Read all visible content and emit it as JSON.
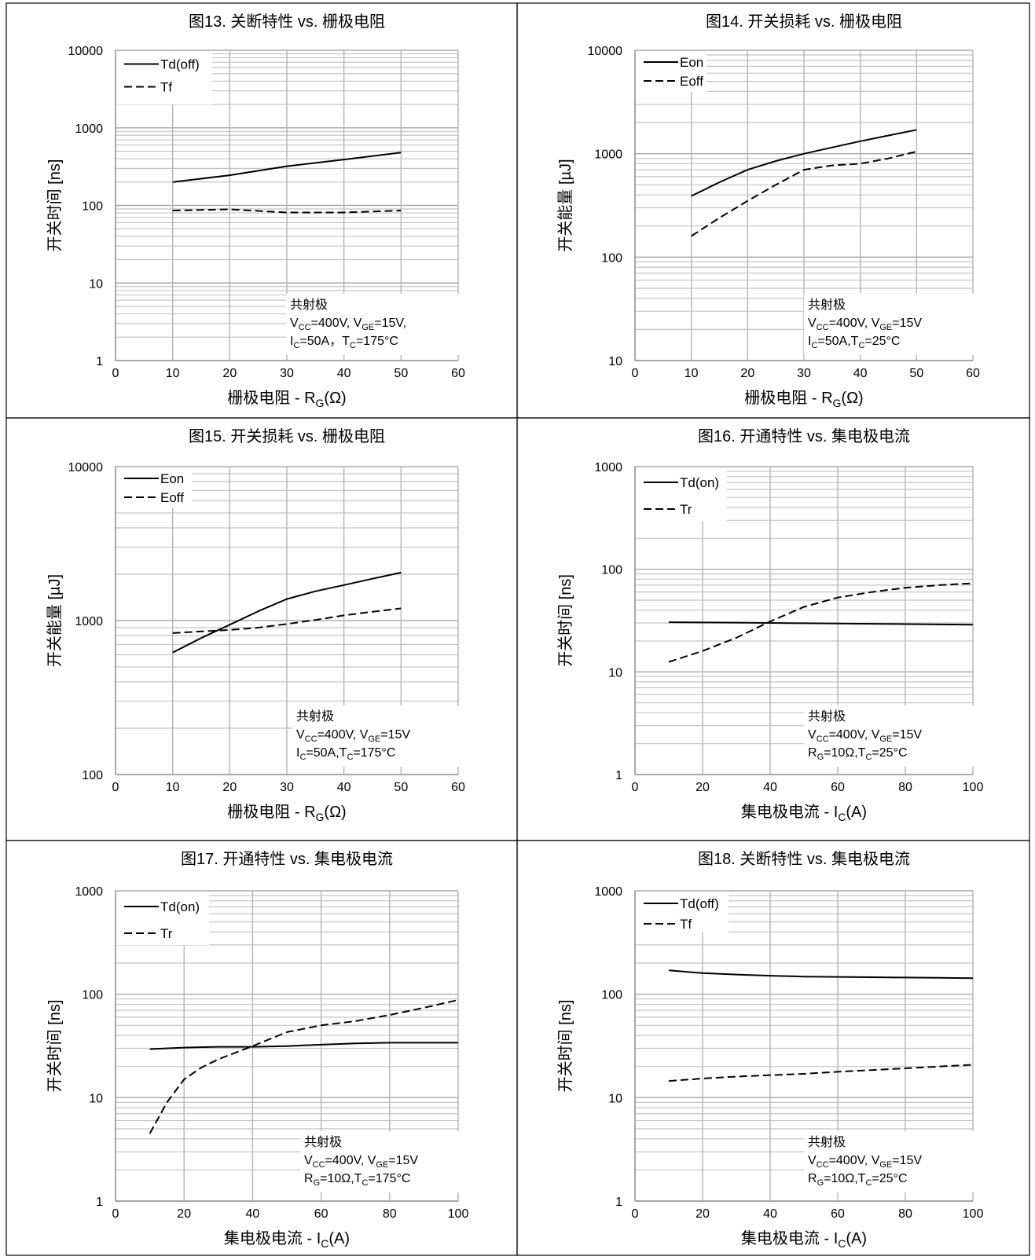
{
  "chart_data": [
    {
      "type": "line",
      "title": "图13. 关断特性 vs. 栅极电阻",
      "xlabel": "栅极电阻 - R",
      "xlabel_sub": "G",
      "xlabel_tail": "(Ω)",
      "ylabel": "开关时间 [ns]",
      "log_y": true,
      "xlim": [
        0,
        60
      ],
      "ylim": [
        1,
        10000
      ],
      "x_ticks": [
        "0",
        "10",
        "20",
        "30",
        "40",
        "50",
        "60"
      ],
      "y_ticks": [
        "1",
        "10",
        "100",
        "1000",
        "10000"
      ],
      "grid": true,
      "legend_position": "top-left",
      "series": [
        {
          "name": "Td(off)",
          "dash": "solid",
          "x": [
            10,
            20,
            30,
            40,
            50
          ],
          "y": [
            200,
            245,
            320,
            390,
            480
          ]
        },
        {
          "name": "Tf",
          "dash": "dashed",
          "x": [
            10,
            20,
            30,
            40,
            50
          ],
          "y": [
            86,
            89,
            81,
            81,
            86
          ]
        }
      ],
      "annotation": [
        [
          {
            "t": "共射极"
          }
        ],
        [
          {
            "t": "V"
          },
          {
            "t": "CC",
            "sub": true
          },
          {
            "t": "=400V, V"
          },
          {
            "t": "GE",
            "sub": true
          },
          {
            "t": "=15V,"
          }
        ],
        [
          {
            "t": "I"
          },
          {
            "t": "C",
            "sub": true
          },
          {
            "t": "=50A，T"
          },
          {
            "t": "C",
            "sub": true
          },
          {
            "t": "=175°C"
          }
        ]
      ]
    },
    {
      "type": "line",
      "title": "图14. 开关损耗 vs. 栅极电阻",
      "xlabel": "栅极电阻 - R",
      "xlabel_sub": "G",
      "xlabel_tail": "(Ω)",
      "ylabel": "开关能量 [µJ]",
      "log_y": true,
      "xlim": [
        0,
        60
      ],
      "ylim": [
        10,
        10000
      ],
      "x_ticks": [
        "0",
        "10",
        "20",
        "30",
        "40",
        "50",
        "60"
      ],
      "y_ticks": [
        "10",
        "100",
        "1000",
        "10000"
      ],
      "grid": true,
      "legend_position": "top-left",
      "series": [
        {
          "name": "Eon",
          "dash": "solid",
          "x": [
            10,
            15,
            20,
            25,
            30,
            35,
            40,
            45,
            50
          ],
          "y": [
            390,
            530,
            700,
            850,
            1000,
            1150,
            1320,
            1500,
            1700
          ]
        },
        {
          "name": "Eoff",
          "dash": "dashed",
          "x": [
            10,
            15,
            20,
            25,
            30,
            35,
            40,
            45,
            50
          ],
          "y": [
            160,
            240,
            350,
            500,
            700,
            770,
            800,
            900,
            1050
          ]
        }
      ],
      "annotation": [
        [
          {
            "t": "共射极"
          }
        ],
        [
          {
            "t": "V"
          },
          {
            "t": "CC",
            "sub": true
          },
          {
            "t": "=400V, V"
          },
          {
            "t": "GE",
            "sub": true
          },
          {
            "t": "=15V"
          }
        ],
        [
          {
            "t": "I"
          },
          {
            "t": "C",
            "sub": true
          },
          {
            "t": "=50A,T"
          },
          {
            "t": "C",
            "sub": true
          },
          {
            "t": "=25°C"
          }
        ]
      ]
    },
    {
      "type": "line",
      "title": "图15. 开关损耗 vs. 栅极电阻",
      "xlabel": "栅极电阻 - R",
      "xlabel_sub": "G",
      "xlabel_tail": "(Ω)",
      "ylabel": "开关能量 [µJ]",
      "log_y": true,
      "xlim": [
        0,
        60
      ],
      "ylim": [
        100,
        10000
      ],
      "x_ticks": [
        "0",
        "10",
        "20",
        "30",
        "40",
        "50",
        "60"
      ],
      "y_ticks": [
        "100",
        "1000",
        "10000"
      ],
      "grid": true,
      "legend_position": "top-left",
      "series": [
        {
          "name": "Eon",
          "dash": "solid",
          "x": [
            10,
            15,
            20,
            25,
            30,
            35,
            40,
            45,
            50
          ],
          "y": [
            620,
            770,
            940,
            1150,
            1380,
            1550,
            1700,
            1870,
            2050
          ]
        },
        {
          "name": "Eoff",
          "dash": "dashed",
          "x": [
            10,
            15,
            20,
            25,
            30,
            35,
            40,
            45,
            50
          ],
          "y": [
            830,
            850,
            870,
            900,
            950,
            1010,
            1080,
            1140,
            1200
          ]
        }
      ],
      "annotation": [
        [
          {
            "t": "共射极"
          }
        ],
        [
          {
            "t": "V"
          },
          {
            "t": "CC",
            "sub": true
          },
          {
            "t": "=400V, V"
          },
          {
            "t": "GE",
            "sub": true
          },
          {
            "t": "=15V"
          }
        ],
        [
          {
            "t": "I"
          },
          {
            "t": "C",
            "sub": true
          },
          {
            "t": "=50A,T"
          },
          {
            "t": "C",
            "sub": true
          },
          {
            "t": "=175°C"
          }
        ]
      ]
    },
    {
      "type": "line",
      "title": "图16. 开通特性 vs. 集电极电流",
      "xlabel": "集电极电流 - I",
      "xlabel_sub": "C",
      "xlabel_tail": "(A)",
      "ylabel": "开关时间 [ns]",
      "log_y": true,
      "xlim": [
        0,
        100
      ],
      "ylim": [
        1,
        1000
      ],
      "x_ticks": [
        "0",
        "20",
        "40",
        "60",
        "80",
        "100"
      ],
      "y_ticks": [
        "1",
        "10",
        "100",
        "1000"
      ],
      "grid": true,
      "legend_position": "top-left",
      "series": [
        {
          "name": "Td(on)",
          "dash": "solid",
          "x": [
            10,
            20,
            30,
            40,
            50,
            60,
            70,
            80,
            90,
            100
          ],
          "y": [
            30.5,
            30.3,
            30.2,
            30.0,
            29.8,
            29.6,
            29.4,
            29.2,
            29.0,
            28.8
          ]
        },
        {
          "name": "Tr",
          "dash": "dashed",
          "x": [
            10,
            20,
            30,
            40,
            50,
            60,
            70,
            80,
            90,
            100
          ],
          "y": [
            12.5,
            16,
            21.5,
            31,
            43,
            53,
            60,
            66,
            70,
            73
          ]
        }
      ],
      "annotation": [
        [
          {
            "t": "共射极"
          }
        ],
        [
          {
            "t": "V"
          },
          {
            "t": "CC",
            "sub": true
          },
          {
            "t": "=400V, V"
          },
          {
            "t": "GE",
            "sub": true
          },
          {
            "t": "=15V"
          }
        ],
        [
          {
            "t": "R"
          },
          {
            "t": "G",
            "sub": true
          },
          {
            "t": "=10Ω,T"
          },
          {
            "t": "C",
            "sub": true
          },
          {
            "t": "=25°C"
          }
        ]
      ]
    },
    {
      "type": "line",
      "title": "图17. 开通特性 vs. 集电极电流",
      "xlabel": "集电极电流 - I",
      "xlabel_sub": "C",
      "xlabel_tail": "(A)",
      "ylabel": "开关时间 [ns]",
      "log_y": true,
      "xlim": [
        0,
        100
      ],
      "ylim": [
        1,
        1000
      ],
      "x_ticks": [
        "0",
        "20",
        "40",
        "60",
        "80",
        "100"
      ],
      "y_ticks": [
        "1",
        "10",
        "100",
        "1000"
      ],
      "grid": true,
      "legend_position": "top-left",
      "series": [
        {
          "name": "Td(on)",
          "dash": "solid",
          "x": [
            10,
            20,
            30,
            40,
            50,
            60,
            70,
            80,
            90,
            100
          ],
          "y": [
            29.5,
            30.5,
            31,
            31,
            31.5,
            32.5,
            33.5,
            34,
            34,
            34
          ]
        },
        {
          "name": "Tr",
          "dash": "dashed",
          "x": [
            10,
            15,
            20,
            25,
            30,
            40,
            50,
            60,
            70,
            80,
            90,
            100
          ],
          "y": [
            4.5,
            9,
            15,
            19.5,
            23.5,
            31.5,
            43,
            50,
            55,
            63,
            74,
            88
          ]
        }
      ],
      "annotation": [
        [
          {
            "t": "共射极"
          }
        ],
        [
          {
            "t": "V"
          },
          {
            "t": "CC",
            "sub": true
          },
          {
            "t": "=400V, V"
          },
          {
            "t": "GE",
            "sub": true
          },
          {
            "t": "=15V"
          }
        ],
        [
          {
            "t": "R"
          },
          {
            "t": "G",
            "sub": true
          },
          {
            "t": "=10Ω,T"
          },
          {
            "t": "C",
            "sub": true
          },
          {
            "t": "=175°C"
          }
        ]
      ]
    },
    {
      "type": "line",
      "title": "图18. 关断特性 vs. 集电极电流",
      "xlabel": "集电极电流 - I",
      "xlabel_sub": "C",
      "xlabel_tail": "(A)",
      "ylabel": "开关时间 [ns]",
      "log_y": true,
      "xlim": [
        0,
        100
      ],
      "ylim": [
        1,
        1000
      ],
      "x_ticks": [
        "0",
        "20",
        "40",
        "60",
        "80",
        "100"
      ],
      "y_ticks": [
        "1",
        "10",
        "100",
        "1000"
      ],
      "grid": true,
      "legend_position": "top-left",
      "series": [
        {
          "name": "Td(off)",
          "dash": "solid",
          "x": [
            10,
            20,
            30,
            40,
            50,
            60,
            70,
            80,
            90,
            100
          ],
          "y": [
            170,
            160,
            155,
            151,
            148,
            147,
            146,
            145,
            144,
            143
          ]
        },
        {
          "name": "Tf",
          "dash": "dashed",
          "x": [
            10,
            20,
            30,
            40,
            50,
            60,
            70,
            80,
            90,
            100
          ],
          "y": [
            14.5,
            15.3,
            16,
            16.5,
            17,
            17.8,
            18.5,
            19.2,
            20,
            20.8
          ]
        }
      ],
      "annotation": [
        [
          {
            "t": "共射极"
          }
        ],
        [
          {
            "t": "V"
          },
          {
            "t": "CC",
            "sub": true
          },
          {
            "t": "=400V, V"
          },
          {
            "t": "GE",
            "sub": true
          },
          {
            "t": "=15V"
          }
        ],
        [
          {
            "t": "R"
          },
          {
            "t": "G",
            "sub": true
          },
          {
            "t": "=10Ω,T"
          },
          {
            "t": "C",
            "sub": true
          },
          {
            "t": "=25°C"
          }
        ]
      ]
    }
  ]
}
